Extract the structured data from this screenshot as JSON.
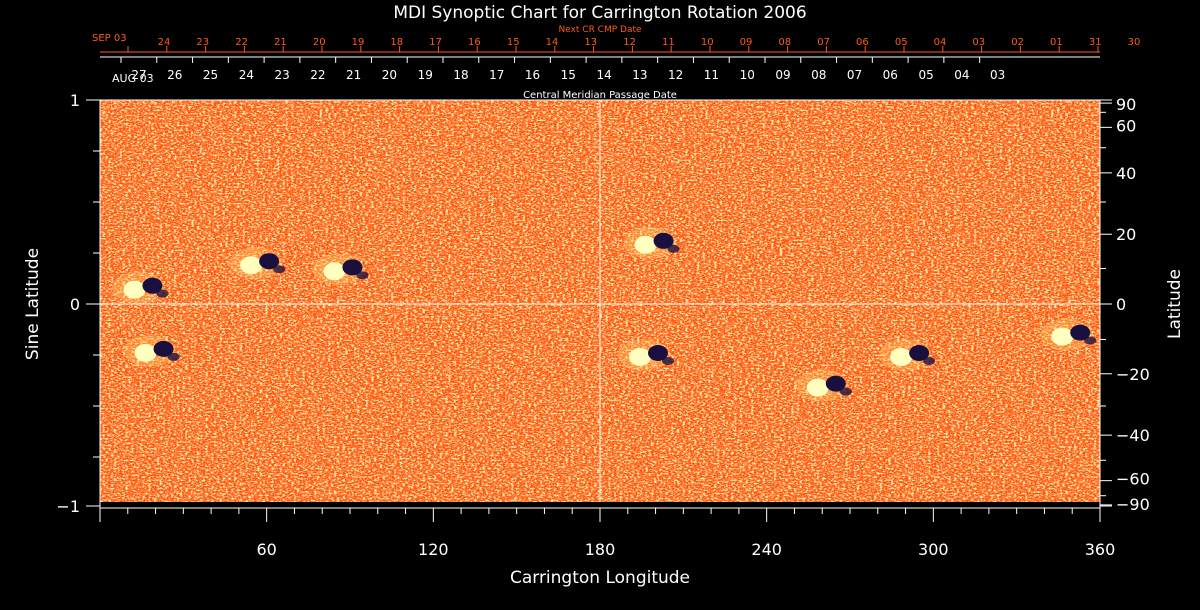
{
  "chart_data": {
    "type": "heatmap",
    "title": "MDI Synoptic Chart for Carrington Rotation 2006",
    "xlabel": "Carrington Longitude",
    "ylabel_left": "Sine Latitude",
    "ylabel_right": "Latitude",
    "xlim": [
      0,
      360
    ],
    "ylim": [
      -1,
      1
    ],
    "x_ticks": [
      60,
      120,
      180,
      240,
      300,
      360
    ],
    "y_ticks_left": [
      "1",
      "0",
      "−1"
    ],
    "y_ticks_right": [
      90,
      60,
      40,
      20,
      0,
      -20,
      -40,
      -60,
      -90
    ],
    "y_ticks_right_labels": [
      "90",
      "60",
      "40",
      "20",
      "0",
      "−20",
      "−40",
      "−60",
      "−90"
    ],
    "top_axis": {
      "label": "Central Meridian Passage Date",
      "month_label": "AUG 03",
      "dates": [
        "27",
        "26",
        "25",
        "24",
        "23",
        "22",
        "21",
        "20",
        "19",
        "18",
        "17",
        "16",
        "15",
        "14",
        "13",
        "12",
        "11",
        "10",
        "09",
        "08",
        "07",
        "06",
        "05",
        "04",
        "03"
      ]
    },
    "next_axis": {
      "label": "Next CR CMP Date",
      "month_label": "SEP 03",
      "dates": [
        "24",
        "23",
        "22",
        "21",
        "20",
        "19",
        "18",
        "17",
        "16",
        "15",
        "14",
        "13",
        "12",
        "11",
        "10",
        "09",
        "08",
        "07",
        "06",
        "05",
        "04",
        "03",
        "02",
        "01",
        "31",
        "30"
      ]
    },
    "colors": {
      "background_field": "#ff4a0a",
      "positive_polarity": "#ffffc0",
      "negative_polarity": "#1a1040",
      "next_axis_color": "#ff5a1a"
    },
    "active_regions": [
      {
        "lon": 58,
        "sinlat": 0.2,
        "polarity": "mixed"
      },
      {
        "lon": 88,
        "sinlat": 0.17,
        "polarity": "mixed"
      },
      {
        "lon": 16,
        "sinlat": 0.08,
        "polarity": "mixed"
      },
      {
        "lon": 20,
        "sinlat": -0.23,
        "polarity": "mixed"
      },
      {
        "lon": 198,
        "sinlat": -0.25,
        "polarity": "mixed"
      },
      {
        "lon": 262,
        "sinlat": -0.4,
        "polarity": "mixed"
      },
      {
        "lon": 292,
        "sinlat": -0.25,
        "polarity": "mixed"
      },
      {
        "lon": 350,
        "sinlat": -0.15,
        "polarity": "mixed"
      },
      {
        "lon": 200,
        "sinlat": 0.3,
        "polarity": "mixed"
      }
    ]
  }
}
